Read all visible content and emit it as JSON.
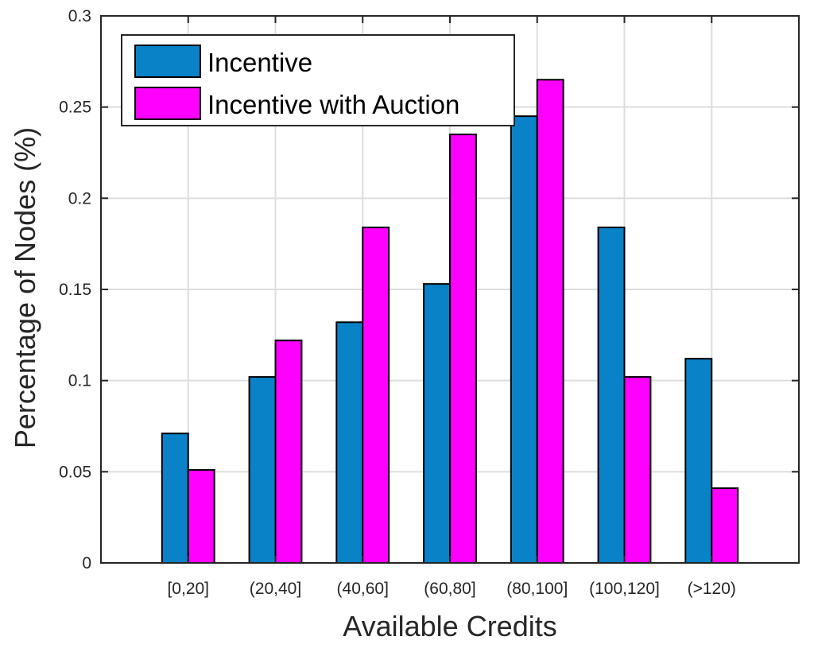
{
  "chart_data": {
    "type": "bar",
    "title": "",
    "xlabel": "Available Credits",
    "ylabel": "Percentage of Nodes (%)",
    "categories": [
      "[0,20]",
      "(20,40]",
      "(40,60]",
      "(60,80]",
      "(80,100]",
      "(100,120]",
      "(>120)"
    ],
    "series": [
      {
        "name": "Incentive",
        "color": "#0a82c8",
        "values": [
          0.071,
          0.102,
          0.132,
          0.153,
          0.245,
          0.184,
          0.112
        ]
      },
      {
        "name": "Incentive with Auction",
        "color": "#ff00ff",
        "values": [
          0.051,
          0.122,
          0.184,
          0.235,
          0.265,
          0.102,
          0.041
        ]
      }
    ],
    "ylim": [
      0,
      0.3
    ],
    "yticks": [
      "0",
      "0.05",
      "0.1",
      "0.15",
      "0.2",
      "0.25",
      "0.3"
    ],
    "grid": true,
    "legend_position": "top-left"
  }
}
